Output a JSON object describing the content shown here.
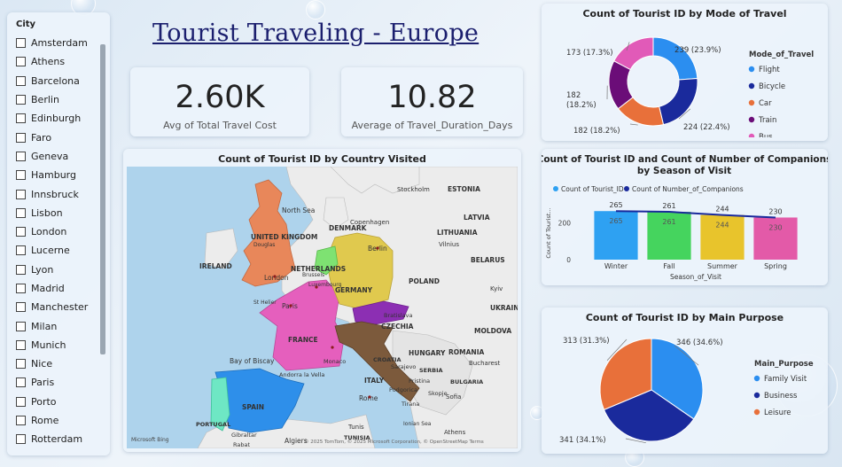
{
  "title": "Tourist Traveling - Europe",
  "slicer": {
    "title": "City",
    "items": [
      "Amsterdam",
      "Athens",
      "Barcelona",
      "Berlin",
      "Edinburgh",
      "Faro",
      "Geneva",
      "Hamburg",
      "Innsbruck",
      "Lisbon",
      "London",
      "Lucerne",
      "Lyon",
      "Madrid",
      "Manchester",
      "Milan",
      "Munich",
      "Nice",
      "Paris",
      "Porto",
      "Rome",
      "Rotterdam"
    ]
  },
  "kpis": [
    {
      "value": "2.60K",
      "label": "Avg of Total Travel Cost"
    },
    {
      "value": "10.82",
      "label": "Average of Travel_Duration_Days"
    }
  ],
  "map": {
    "title": "Count of Tourist ID by Country Visited",
    "labels": {
      "north_sea": "North Sea",
      "uk": "UNITED KINGDOM",
      "ireland": "IRELAND",
      "netherlands": "NETHERLANDS",
      "germany": "GERMANY",
      "poland": "POLAND",
      "france": "FRANCE",
      "spain": "SPAIN",
      "portugal": "PORTUGAL",
      "italy": "ITALY",
      "denmark": "DENMARK",
      "lithuania": "LITHUANIA",
      "latvia": "LATVIA",
      "estonia": "ESTONIA",
      "belarus": "BELARUS",
      "czechia": "CZECHIA",
      "hungary": "HUNGARY",
      "romania": "ROMANIA",
      "moldova": "MOLDOVA",
      "ukraine": "UKRAIN",
      "bay_of_biscay": "Bay of Biscay",
      "croatia": "CROATIA",
      "serbia": "SERBIA",
      "bulgaria": "BULGARIA",
      "tunisia": "TUNISIA",
      "london": "London",
      "paris": "Paris",
      "berlin": "Berlin",
      "rome": "Rome",
      "copenhagen": "Copenhagen",
      "stockholm": "Stockholm",
      "vilnius": "Vilnius",
      "kyiv": "Kyiv",
      "bucharest": "Bucharest",
      "sofia": "Sofia",
      "athens": "Athens",
      "algiers": "Algiers",
      "tunis": "Tunis",
      "monaco": "Monaco",
      "andorra": "Andorra la Vella",
      "luxembourg": "Luxembourg",
      "brussels": "Brussels",
      "douglas": "Douglas",
      "st_helier": "St Helier",
      "gibraltar": "Gibraltar",
      "tirana": "Tirana",
      "skopje": "Skopje",
      "pristina": "Pristina",
      "sarajevo": "Sarajevo",
      "podgorica": "Podgorica",
      "ionian_sea": "Ionian Sea",
      "rabat": "Rabat",
      "bratislava": "Bratislava",
      "attribution": "© 2025 TomTom, © 2025 Microsoft Corporation, © OpenStreetMap Terms",
      "bing": "Microsoft Bing"
    }
  },
  "chart_data": [
    {
      "type": "pie",
      "title": "Count of Tourist ID by Mode of Travel",
      "legend_title": "Mode_of_Travel",
      "legend_position": "right",
      "categories": [
        "Flight",
        "Bicycle",
        "Car",
        "Train",
        "Bus"
      ],
      "values": [
        239,
        224,
        182,
        182,
        173
      ],
      "labels": [
        "239 (23.9%)",
        "224 (22.4%)",
        "182 (18.2%)",
        "182\n(18.2%)",
        "173 (17.3%)"
      ],
      "colors": [
        "#2b8ef0",
        "#1a2a9c",
        "#e8703a",
        "#6b0d78",
        "#e15ab8"
      ],
      "donut": true
    },
    {
      "type": "bar",
      "title": "Count of Tourist ID and Count of Number of Companions by Season of Visit",
      "categories": [
        "Winter",
        "Fall",
        "Summer",
        "Spring"
      ],
      "series": [
        {
          "name": "Count of Tourist_ID",
          "values": [
            265,
            261,
            244,
            230
          ],
          "kind": "bar",
          "colors": [
            "#2ea1f2",
            "#45d45e",
            "#e8c42c",
            "#e35aa8"
          ]
        },
        {
          "name": "Count of Number_of_Companions",
          "values": [
            265,
            261,
            244,
            230
          ],
          "kind": "line",
          "color": "#1a2a9c"
        }
      ],
      "xlabel": "Season_of_Visit",
      "ylabel": "Count of Tourist...",
      "yticks": [
        0,
        200
      ],
      "ylim": [
        0,
        300
      ],
      "legend_position": "top"
    },
    {
      "type": "pie",
      "title": "Count of Tourist ID by Main Purpose",
      "legend_title": "Main_Purpose",
      "legend_position": "right",
      "categories": [
        "Family Visit",
        "Business",
        "Leisure"
      ],
      "values": [
        346,
        341,
        313
      ],
      "labels": [
        "346 (34.6%)",
        "341 (34.1%)",
        "313 (31.3%)"
      ],
      "colors": [
        "#2b8ef0",
        "#1a2a9c",
        "#e8703a"
      ]
    }
  ]
}
